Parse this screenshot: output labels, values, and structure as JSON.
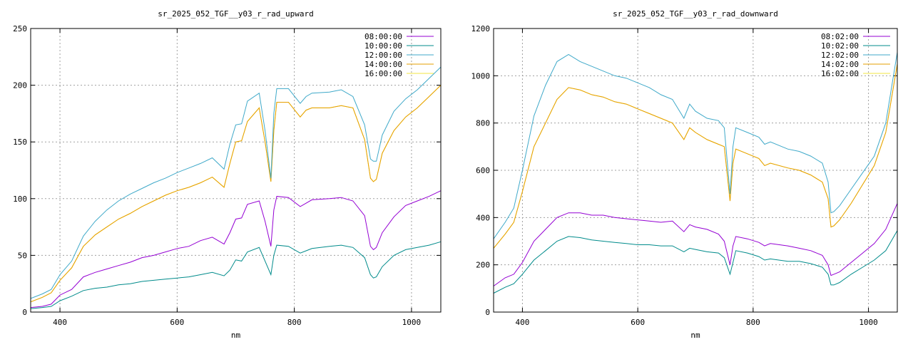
{
  "chart_data": [
    {
      "type": "line",
      "title": "sr_2025_052_TGF__y03_r_rad_upward",
      "xlabel": "nm",
      "ylabel": "",
      "xlim": [
        350,
        1050
      ],
      "ylim": [
        0,
        250
      ],
      "xticks": [
        400,
        600,
        800,
        1000
      ],
      "yticks": [
        0,
        50,
        100,
        150,
        200,
        250
      ],
      "grid": true,
      "legend": "top-right",
      "x": [
        350,
        370,
        385,
        400,
        420,
        440,
        460,
        480,
        500,
        520,
        540,
        560,
        580,
        600,
        620,
        640,
        660,
        680,
        690,
        700,
        710,
        720,
        740,
        750,
        760,
        765,
        770,
        790,
        810,
        820,
        830,
        860,
        880,
        900,
        920,
        930,
        935,
        940,
        950,
        970,
        990,
        1010,
        1030,
        1050
      ],
      "series": [
        {
          "name": "08:00:00",
          "color": "#9400d3",
          "values": [
            4,
            5,
            7,
            15,
            20,
            31,
            35,
            38,
            41,
            44,
            48,
            50,
            53,
            56,
            58,
            63,
            66,
            60,
            70,
            82,
            83,
            95,
            98,
            80,
            58,
            90,
            102,
            101,
            93,
            96,
            99,
            100,
            101,
            98,
            85,
            58,
            55,
            57,
            70,
            84,
            94,
            98,
            102,
            107
          ]
        },
        {
          "name": "10:00:00",
          "color": "#008b8b",
          "values": [
            3,
            4,
            5,
            10,
            14,
            19,
            21,
            22,
            24,
            25,
            27,
            28,
            29,
            30,
            31,
            33,
            35,
            32,
            37,
            46,
            45,
            53,
            57,
            45,
            33,
            50,
            59,
            58,
            52,
            54,
            56,
            58,
            59,
            57,
            48,
            33,
            30,
            31,
            40,
            50,
            55,
            57,
            59,
            62
          ]
        },
        {
          "name": "12:00:00",
          "color": "#3fa9c9",
          "values": [
            12,
            16,
            20,
            33,
            45,
            67,
            80,
            90,
            98,
            104,
            109,
            114,
            118,
            123,
            127,
            131,
            136,
            126,
            148,
            165,
            166,
            186,
            193,
            160,
            118,
            175,
            197,
            197,
            184,
            190,
            193,
            194,
            196,
            190,
            165,
            135,
            133,
            133,
            156,
            177,
            188,
            196,
            206,
            216
          ]
        },
        {
          "name": "14:00:00",
          "color": "#e69f00",
          "values": [
            9,
            13,
            17,
            28,
            39,
            58,
            68,
            75,
            82,
            87,
            93,
            98,
            103,
            107,
            110,
            114,
            119,
            110,
            131,
            150,
            151,
            168,
            180,
            150,
            115,
            160,
            185,
            185,
            172,
            178,
            180,
            180,
            182,
            180,
            152,
            118,
            115,
            117,
            140,
            160,
            172,
            180,
            190,
            200
          ]
        },
        {
          "name": "16:00:00",
          "color": "#f0e442",
          "values": [
            9,
            13,
            17,
            28,
            39,
            58,
            68,
            75,
            82,
            87,
            93,
            98,
            103,
            107,
            110,
            114,
            119,
            110,
            131,
            150,
            151,
            168,
            180,
            150,
            115,
            160,
            185,
            185,
            172,
            178,
            180,
            180,
            182,
            180,
            152,
            118,
            115,
            117,
            140,
            160,
            172,
            180,
            190,
            200
          ]
        }
      ]
    },
    {
      "type": "line",
      "title": "sr_2025_052_TGF__y03_r_rad_downward",
      "xlabel": "nm",
      "ylabel": "",
      "xlim": [
        350,
        1050
      ],
      "ylim": [
        0,
        1200
      ],
      "xticks": [
        400,
        600,
        800,
        1000
      ],
      "yticks": [
        0,
        200,
        400,
        600,
        800,
        1000,
        1200
      ],
      "grid": true,
      "legend": "top-right",
      "x": [
        350,
        370,
        385,
        400,
        420,
        440,
        460,
        480,
        500,
        520,
        540,
        560,
        580,
        600,
        620,
        640,
        660,
        680,
        690,
        700,
        720,
        740,
        750,
        760,
        765,
        770,
        790,
        810,
        820,
        830,
        860,
        880,
        900,
        920,
        930,
        935,
        940,
        950,
        970,
        990,
        1010,
        1030,
        1050
      ],
      "series": [
        {
          "name": "08:02:00",
          "color": "#9400d3",
          "values": [
            110,
            145,
            160,
            210,
            300,
            350,
            400,
            420,
            420,
            410,
            410,
            400,
            395,
            390,
            385,
            380,
            385,
            340,
            370,
            360,
            350,
            330,
            300,
            200,
            280,
            320,
            310,
            295,
            280,
            290,
            280,
            270,
            260,
            240,
            200,
            155,
            160,
            170,
            210,
            250,
            290,
            350,
            460
          ]
        },
        {
          "name": "10:02:00",
          "color": "#008b8b",
          "values": [
            80,
            105,
            120,
            160,
            220,
            260,
            300,
            320,
            315,
            305,
            300,
            295,
            290,
            285,
            285,
            280,
            280,
            255,
            270,
            265,
            255,
            250,
            230,
            160,
            210,
            260,
            250,
            235,
            220,
            225,
            215,
            215,
            205,
            190,
            160,
            115,
            115,
            125,
            160,
            190,
            220,
            260,
            345
          ]
        },
        {
          "name": "12:02:00",
          "color": "#3fa9c9",
          "values": [
            310,
            380,
            440,
            600,
            830,
            960,
            1060,
            1090,
            1060,
            1040,
            1020,
            1000,
            990,
            970,
            950,
            920,
            900,
            820,
            880,
            850,
            820,
            810,
            780,
            500,
            700,
            780,
            760,
            740,
            710,
            720,
            690,
            680,
            660,
            630,
            550,
            420,
            425,
            450,
            520,
            590,
            660,
            800,
            1100
          ]
        },
        {
          "name": "14:02:00",
          "color": "#e69f00",
          "values": [
            270,
            330,
            380,
            510,
            700,
            800,
            900,
            950,
            940,
            920,
            910,
            890,
            880,
            860,
            840,
            820,
            800,
            730,
            780,
            760,
            730,
            710,
            700,
            470,
            630,
            690,
            670,
            650,
            620,
            630,
            610,
            600,
            580,
            550,
            480,
            360,
            365,
            390,
            460,
            540,
            620,
            760,
            1050
          ]
        },
        {
          "name": "16:02:00",
          "color": "#f0e442",
          "values": [
            270,
            330,
            380,
            510,
            700,
            800,
            900,
            950,
            940,
            920,
            910,
            890,
            880,
            860,
            840,
            820,
            800,
            730,
            780,
            760,
            730,
            710,
            700,
            470,
            630,
            690,
            670,
            650,
            620,
            630,
            610,
            600,
            580,
            550,
            480,
            360,
            365,
            390,
            460,
            540,
            620,
            760,
            1050
          ]
        }
      ]
    }
  ]
}
